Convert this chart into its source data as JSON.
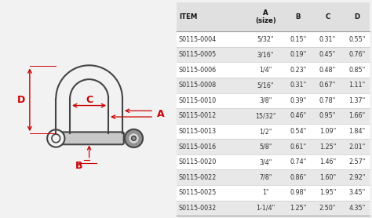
{
  "table_headers": [
    "ITEM",
    "A\n(size)",
    "B",
    "C",
    "D"
  ],
  "table_data": [
    [
      "S0115-0004",
      "5/32\"",
      "0.15\"",
      "0.31\"",
      "0.55\""
    ],
    [
      "S0115-0005",
      "3/16\"",
      "0.19\"",
      "0.45\"",
      "0.76\""
    ],
    [
      "S0115-0006",
      "1/4\"",
      "0.23\"",
      "0.48\"",
      "0.85\""
    ],
    [
      "S0115-0008",
      "5/16\"",
      "0.31\"",
      "0.67\"",
      "1.11\""
    ],
    [
      "S0115-0010",
      "3/8\"",
      "0.39\"",
      "0.78\"",
      "1.37\""
    ],
    [
      "S0115-0012",
      "15/32\"",
      "0.46\"",
      "0.95\"",
      "1.66\""
    ],
    [
      "S0115-0013",
      "1/2\"",
      "0.54\"",
      "1.09\"",
      "1.84\""
    ],
    [
      "S0115-0016",
      "5/8\"",
      "0.61\"",
      "1.25\"",
      "2.01\""
    ],
    [
      "S0115-0020",
      "3/4\"",
      "0.74\"",
      "1.46\"",
      "2.57\""
    ],
    [
      "S0115-0022",
      "7/8\"",
      "0.86\"",
      "1.60\"",
      "2.92\""
    ],
    [
      "S0115-0025",
      "1\"",
      "0.98\"",
      "1.95\"",
      "3.45\""
    ],
    [
      "S0115-0032",
      "1-1/4\"",
      "1.25\"",
      "2.50\"",
      "4.35\""
    ]
  ],
  "bg_color": "#f2f2f2",
  "header_color": "#e0e0e0",
  "row_odd_color": "#ffffff",
  "row_even_color": "#e8e8e8",
  "arrow_color": "#cc0000",
  "line_color": "#444444"
}
